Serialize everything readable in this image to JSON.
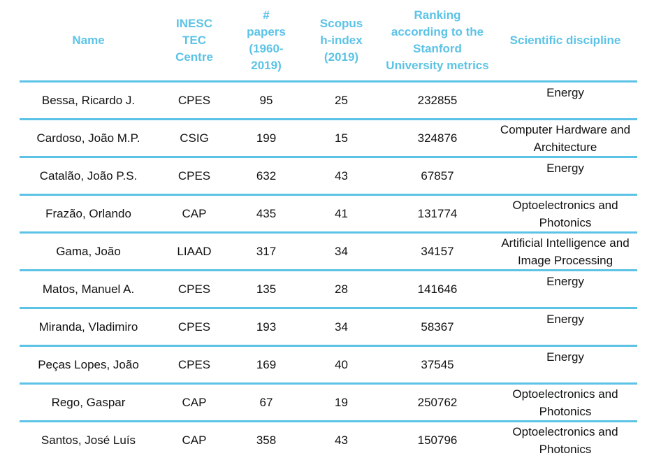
{
  "headers": {
    "name": "Name",
    "centre": "INESC TEC Centre",
    "papers": "# papers (1960-2019)",
    "hindex": "Scopus h-index (2019)",
    "ranking": "Ranking according to the Stanford University metrics",
    "discipline": "Scientific discipline"
  },
  "colors": {
    "header_text": "#5cc3e6",
    "rule": "#5cc3e6",
    "body_text": "#111111"
  },
  "rows": [
    {
      "name": "Bessa, Ricardo J.",
      "centre": "CPES",
      "papers": "95",
      "hindex": "25",
      "ranking": "232855",
      "discipline": "Energy"
    },
    {
      "name": "Cardoso, João M.P.",
      "centre": "CSIG",
      "papers": "199",
      "hindex": "15",
      "ranking": "324876",
      "discipline": "Computer Hardware and Architecture"
    },
    {
      "name": "Catalão, João P.S.",
      "centre": "CPES",
      "papers": "632",
      "hindex": "43",
      "ranking": "67857",
      "discipline": "Energy"
    },
    {
      "name": "Frazão, Orlando",
      "centre": "CAP",
      "papers": "435",
      "hindex": "41",
      "ranking": "131774",
      "discipline": "Optoelectronics and Photonics"
    },
    {
      "name": "Gama, João",
      "centre": "LIAAD",
      "papers": "317",
      "hindex": "34",
      "ranking": "34157",
      "discipline": "Artificial Intelligence and Image Processing"
    },
    {
      "name": "Matos, Manuel A.",
      "centre": "CPES",
      "papers": "135",
      "hindex": "28",
      "ranking": "141646",
      "discipline": "Energy"
    },
    {
      "name": "Miranda, Vladimiro",
      "centre": "CPES",
      "papers": "193",
      "hindex": "34",
      "ranking": "58367",
      "discipline": "Energy"
    },
    {
      "name": "Peças Lopes, João",
      "centre": "CPES",
      "papers": "169",
      "hindex": "40",
      "ranking": "37545",
      "discipline": "Energy"
    },
    {
      "name": "Rego, Gaspar",
      "centre": "CAP",
      "papers": "67",
      "hindex": "19",
      "ranking": "250762",
      "discipline": "Optoelectronics and Photonics"
    },
    {
      "name": "Santos, José Luís",
      "centre": "CAP",
      "papers": "358",
      "hindex": "43",
      "ranking": "150796",
      "discipline": "Optoelectronics and Photonics"
    }
  ]
}
